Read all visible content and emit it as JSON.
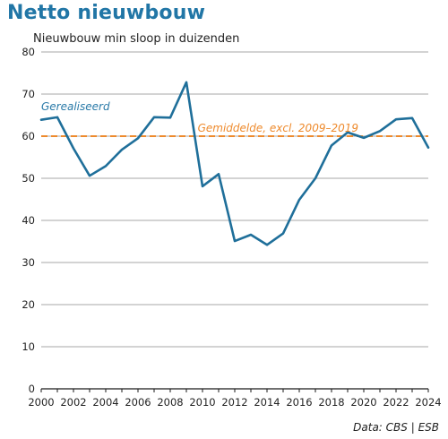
{
  "chart_data": {
    "type": "line",
    "title": "Netto nieuwbouw",
    "subtitle": "Nieuwbouw min sloop in duizenden",
    "source": "Data: CBS | ESB",
    "x": [
      2000,
      2001,
      2002,
      2003,
      2004,
      2005,
      2006,
      2007,
      2008,
      2009,
      2010,
      2011,
      2012,
      2013,
      2014,
      2015,
      2016,
      2017,
      2018,
      2019,
      2020,
      2021,
      2022,
      2023,
      2024
    ],
    "x_ticks": [
      "2000",
      "2002",
      "2004",
      "2006",
      "2008",
      "2010",
      "2012",
      "2014",
      "2016",
      "2018",
      "2020",
      "2022",
      "2024"
    ],
    "y_ticks": [
      "0",
      "10",
      "20",
      "30",
      "40",
      "50",
      "60",
      "70",
      "80"
    ],
    "ylim": [
      0,
      80
    ],
    "xlim": [
      2000,
      2024
    ],
    "grid": true,
    "series": [
      {
        "name": "Gerealiseerd",
        "color": "#1f6f9a",
        "values": [
          63.9,
          64.5,
          57.1,
          50.6,
          52.9,
          56.8,
          59.5,
          64.5,
          64.4,
          72.8,
          48.1,
          51.0,
          35.1,
          36.6,
          34.2,
          36.9,
          44.9,
          50.0,
          57.8,
          60.9,
          59.6,
          61.2,
          64.0,
          64.3,
          57.3
        ]
      }
    ],
    "reference_line": {
      "label": "Gemiddelde, excl. 2009–2019",
      "value": 60,
      "color": "#ee8a2c",
      "style": "dashed"
    }
  }
}
